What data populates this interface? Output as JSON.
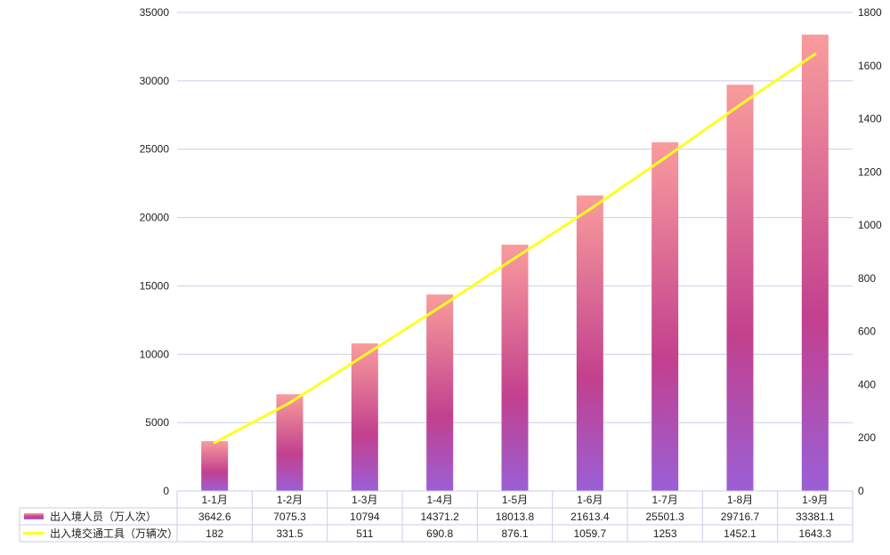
{
  "chart_data": {
    "type": "bar",
    "categories": [
      "1-1月",
      "1-2月",
      "1-3月",
      "1-4月",
      "1-5月",
      "1-6月",
      "1-7月",
      "1-8月",
      "1-9月"
    ],
    "series": [
      {
        "name": "出入境人员（万人次）",
        "type": "bar",
        "axis": "left",
        "values": [
          3642.6,
          7075.3,
          10794,
          14371.2,
          18013.8,
          21613.4,
          25501.3,
          29716.7,
          33381.1
        ]
      },
      {
        "name": "出入境交通工具（万辆次）",
        "type": "line",
        "axis": "right",
        "values": [
          182,
          331.5,
          511,
          690.8,
          876.1,
          1059.7,
          1253,
          1452.1,
          1643.3
        ]
      }
    ],
    "y_left": {
      "min": 0,
      "max": 35000,
      "ticks": [
        0,
        5000,
        10000,
        15000,
        20000,
        25000,
        30000,
        35000
      ]
    },
    "y_right": {
      "min": 0,
      "max": 1800,
      "ticks": [
        0,
        200,
        400,
        600,
        800,
        1000,
        1200,
        1400,
        1600,
        1800
      ]
    },
    "grid": true,
    "legend": "data-table-bottom",
    "colors": {
      "bar_top": "#f99c9c",
      "bar_mid": "#c2408e",
      "bar_bottom": "#9b5fd6",
      "line": "#ffff22",
      "grid": "#c9cde6",
      "table_border": "#c9cde6"
    }
  }
}
